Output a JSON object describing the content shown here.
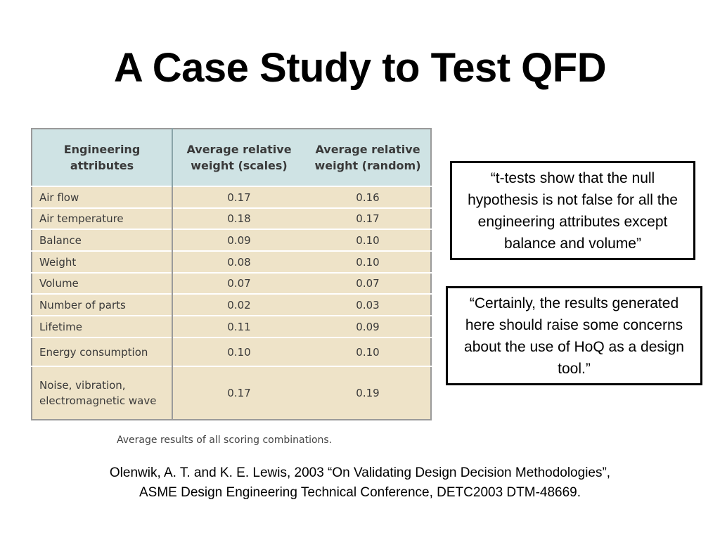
{
  "slide": {
    "title": "A Case Study to Test QFD"
  },
  "table": {
    "headers": {
      "col1_line1": "Engineering",
      "col1_line2": "attributes",
      "col2_line1": "Average relative",
      "col2_line2": "weight (scales)",
      "col3_line1": "Average relative",
      "col3_line2": "weight (random)"
    },
    "rows": [
      {
        "attribute": "Air flow",
        "scales": "0.17",
        "random": "0.16"
      },
      {
        "attribute": "Air temperature",
        "scales": "0.18",
        "random": "0.17"
      },
      {
        "attribute": "Balance",
        "scales": "0.09",
        "random": "0.10"
      },
      {
        "attribute": "Weight",
        "scales": "0.08",
        "random": "0.10"
      },
      {
        "attribute": "Volume",
        "scales": "0.07",
        "random": "0.07"
      },
      {
        "attribute": "Number of parts",
        "scales": "0.02",
        "random": "0.03"
      },
      {
        "attribute": "Lifetime",
        "scales": "0.11",
        "random": "0.09"
      },
      {
        "attribute": "Energy consumption",
        "scales": "0.10",
        "random": "0.10"
      },
      {
        "attribute": "Noise, vibration,",
        "attribute_line2": "electromagnetic wave",
        "scales": "0.17",
        "random": "0.19"
      }
    ],
    "caption": "Average results of all scoring combinations."
  },
  "quotes": {
    "quote1": "“t-tests show that the null hypothesis is not false for all the engineering attributes except balance and volume”",
    "quote2": "“Certainly, the results generated here should raise some concerns about the use of HoQ as a design tool.”"
  },
  "citation": {
    "line1": "Olenwik, A. T. and K. E. Lewis, 2003 “On Validating Design Decision Methodologies”,",
    "line2": "ASME Design Engineering Technical Conference, DETC2003 DTM-48669."
  }
}
